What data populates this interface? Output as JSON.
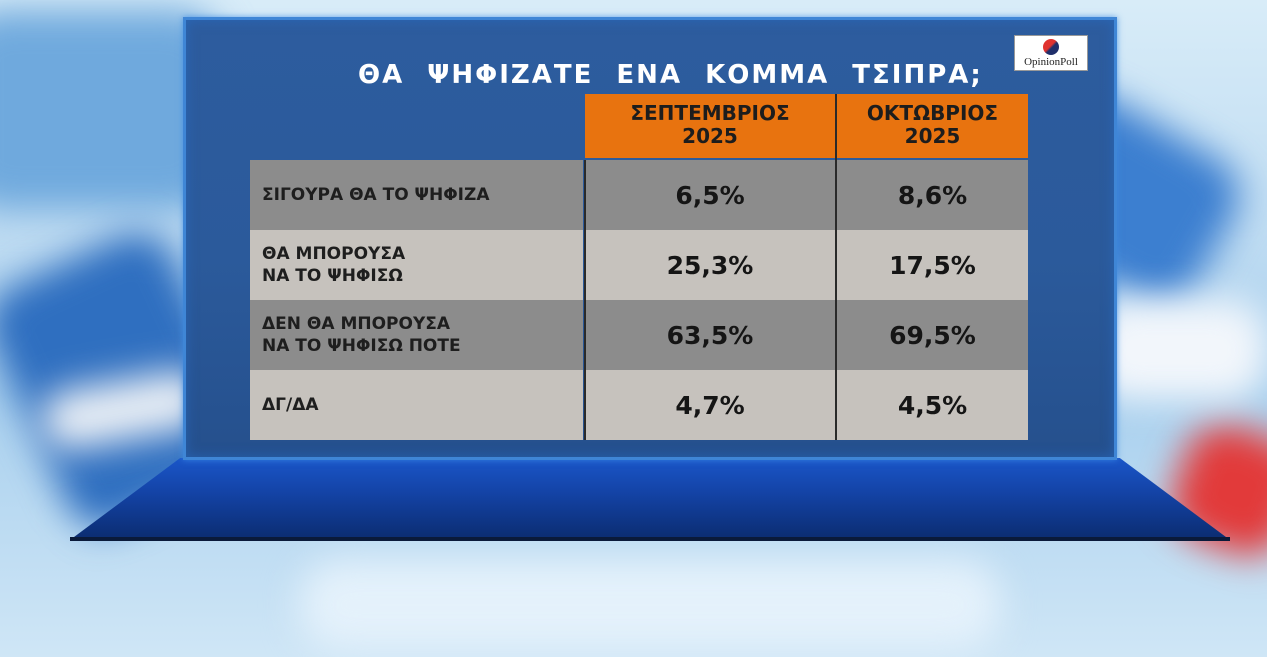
{
  "title": "ΘΑ ΨΗΦΙΖΑΤΕ ΕΝΑ ΚΟΜΜΑ ΤΣΙΠΡΑ;",
  "logo": {
    "text": "OpinionPoll"
  },
  "chart_data": {
    "type": "table",
    "title": "ΘΑ ΨΗΦΙΖΑΤΕ ΕΝΑ ΚΟΜΜΑ ΤΣΙΠΡΑ;",
    "columns": [
      {
        "line1": "ΣΕΠΤΕΜΒΡΙΟΣ",
        "line2": "2025"
      },
      {
        "line1": "ΟΚΤΩΒΡΙΟΣ",
        "line2": "2025"
      }
    ],
    "rows": [
      {
        "label_lines": [
          "ΣΙΓΟΥΡΑ ΘΑ ΤΟ ΨΗΦΙΖΑ"
        ],
        "values": [
          "6,5%",
          "8,6%"
        ]
      },
      {
        "label_lines": [
          "ΘΑ ΜΠΟΡΟΥΣΑ",
          "ΝΑ ΤΟ ΨΗΦΙΣΩ"
        ],
        "values": [
          "25,3%",
          "17,5%"
        ]
      },
      {
        "label_lines": [
          "ΔΕΝ ΘΑ ΜΠΟΡΟΥΣΑ",
          "ΝΑ ΤΟ ΨΗΦΙΣΩ ΠΟΤΕ"
        ],
        "values": [
          "63,5%",
          "69,5%"
        ]
      },
      {
        "label_lines": [
          "ΔΓ/ΔΑ"
        ],
        "values": [
          "4,7%",
          "4,5%"
        ]
      }
    ]
  }
}
